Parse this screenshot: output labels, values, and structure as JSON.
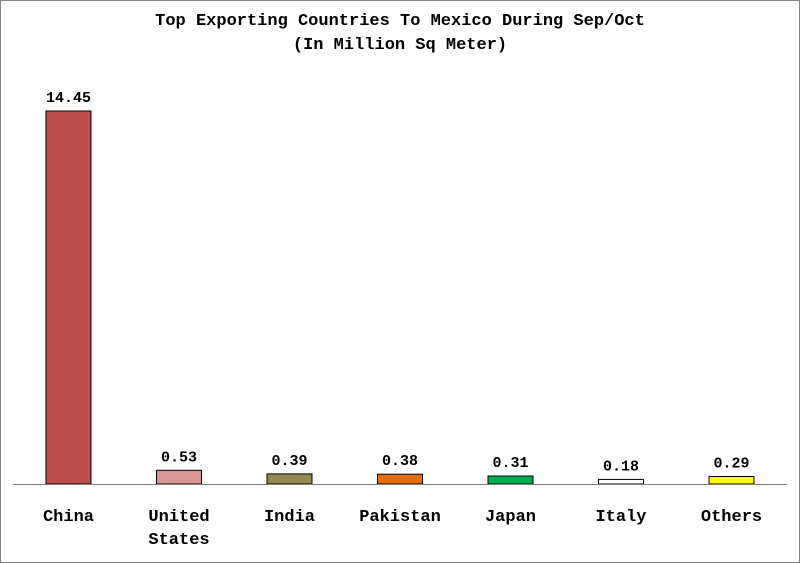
{
  "chart_data": {
    "type": "bar",
    "title": "Top Exporting Countries To Mexico During Sep/Oct",
    "subtitle": "(In Million Sq Meter)",
    "xlabel": "",
    "ylabel": "",
    "categories": [
      "China",
      "United States",
      "India",
      "Pakistan",
      "Japan",
      "Italy",
      "Others"
    ],
    "category_lines": [
      [
        "China"
      ],
      [
        "United",
        "States"
      ],
      [
        "India"
      ],
      [
        "Pakistan"
      ],
      [
        "Japan"
      ],
      [
        "Italy"
      ],
      [
        "Others"
      ]
    ],
    "values": [
      14.45,
      0.53,
      0.39,
      0.38,
      0.31,
      0.18,
      0.29
    ],
    "value_labels": [
      "14.45",
      "0.53",
      "0.39",
      "0.38",
      "0.31",
      "0.18",
      "0.29"
    ],
    "colors": [
      "#c0504d",
      "#d99694",
      "#948a54",
      "#e36c09",
      "#00b050",
      "#ffffff",
      "#ffff00"
    ],
    "ylim": [
      0,
      14.45
    ],
    "grid": false,
    "legend": "none"
  }
}
